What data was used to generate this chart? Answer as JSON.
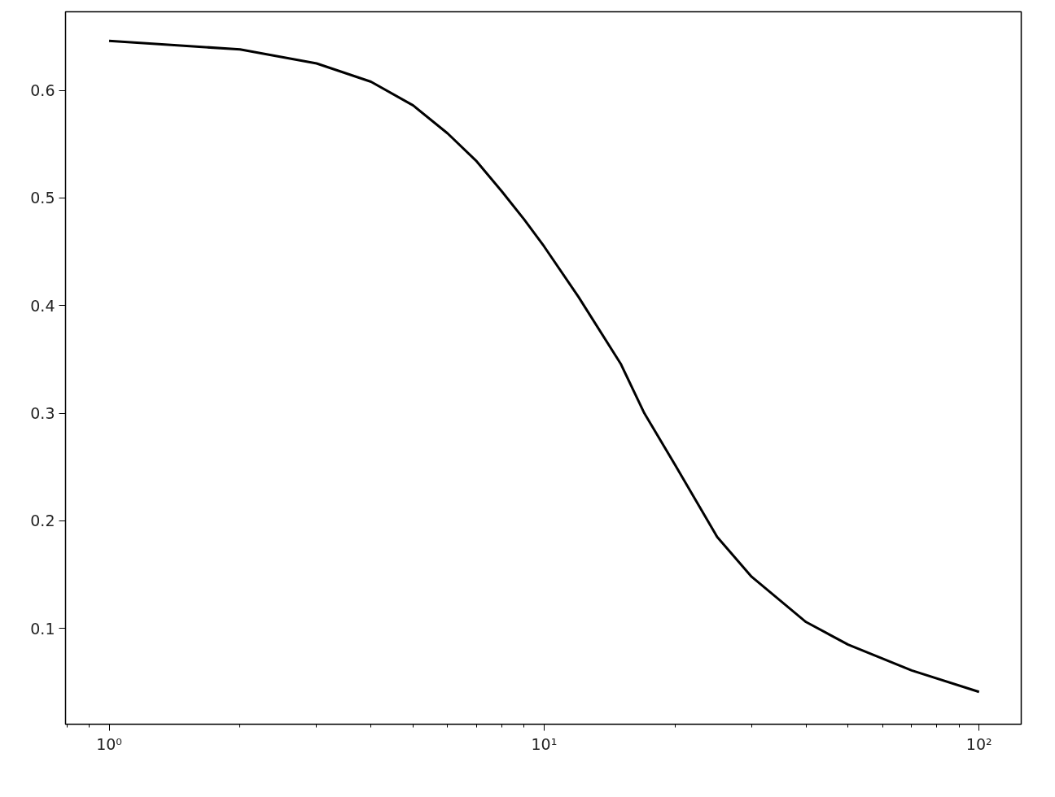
{
  "chart_data": {
    "type": "line",
    "log": "x",
    "grid": false,
    "line_style": "solid",
    "x": [
      1,
      2,
      3,
      4,
      5,
      6,
      7,
      8,
      9,
      10,
      12,
      15,
      17,
      20,
      25,
      30,
      40,
      50,
      70,
      100
    ],
    "series": [
      {
        "color": "#000000",
        "values": [
          0.646,
          0.638,
          0.625,
          0.608,
          0.586,
          0.56,
          0.534,
          0.506,
          0.48,
          0.455,
          0.408,
          0.346,
          0.3,
          0.252,
          0.185,
          0.148,
          0.106,
          0.085,
          0.061,
          0.041
        ]
      }
    ],
    "xlim": [
      0.794,
      125
    ],
    "ylim": [
      0.011,
      0.673
    ],
    "xticks": [
      {
        "value": 1,
        "label": "10⁰"
      },
      {
        "value": 10,
        "label": "10¹"
      },
      {
        "value": 100,
        "label": "10²"
      }
    ],
    "yticks": [
      0.1,
      0.2,
      0.3,
      0.4,
      0.5,
      0.6
    ]
  }
}
